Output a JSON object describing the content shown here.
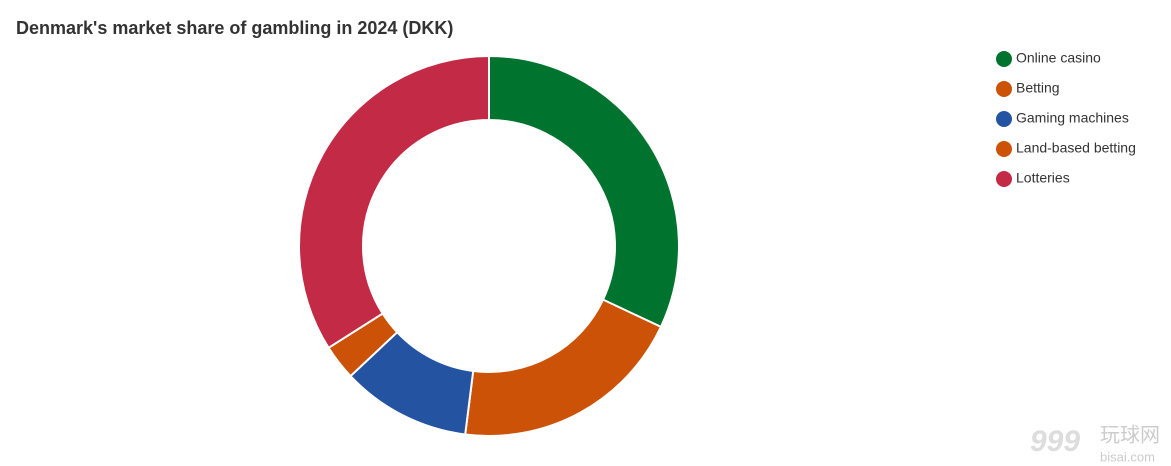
{
  "chart_data": {
    "type": "donut",
    "title": "Denmark's market share of gambling in 2024 (DKK)",
    "categories": [
      "Online casino",
      "Betting",
      "Gaming machines",
      "Land-based betting",
      "Lotteries"
    ],
    "values": [
      32,
      20,
      11,
      3,
      34
    ],
    "colors": [
      "#00732f",
      "#cc5207",
      "#2453a2",
      "#cc5207",
      "#c32a45"
    ],
    "legend": "top-right"
  },
  "watermark": {
    "number": "999",
    "name": "玩球网",
    "site": "bisai.com"
  }
}
